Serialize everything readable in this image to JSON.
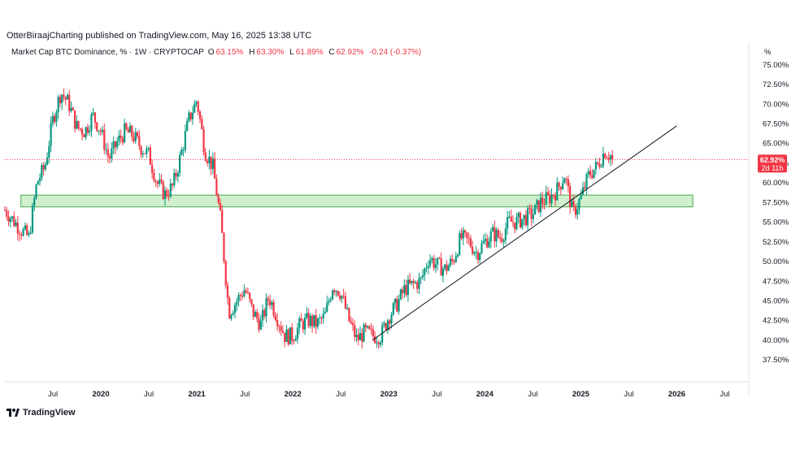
{
  "header": {
    "publisher": "OtterBiraajCharting published on TradingView.com, May 16, 2025 13:38 UTC"
  },
  "legend": {
    "symbol": "Market Cap BTC Dominance, % · 1W · CRYPTOCAP",
    "o_label": "O",
    "o_value": "63.15%",
    "h_label": "H",
    "h_value": "63.30%",
    "l_label": "L",
    "l_value": "61.89%",
    "c_label": "C",
    "c_value": "62.92%",
    "change": "-0.24 (-0.37%)"
  },
  "price_badge": {
    "value": "62.92%",
    "countdown": "2d 11h"
  },
  "footer": {
    "brand": "TradingView"
  },
  "colors": {
    "up": "#089981",
    "down": "#f23645",
    "zone_fill": "#c8ecc4",
    "zone_stroke": "#4caf50",
    "trendline": "#131722"
  },
  "chart_data": {
    "type": "candlestick",
    "y_unit": "%",
    "ylim": [
      35.5,
      77.0
    ],
    "y_ticks": [
      {
        "v": 37.5,
        "label": "37.50%"
      },
      {
        "v": 40,
        "label": "40.00%"
      },
      {
        "v": 42.5,
        "label": "42.50%"
      },
      {
        "v": 45,
        "label": "45.00%"
      },
      {
        "v": 47.5,
        "label": "47.50%"
      },
      {
        "v": 50,
        "label": "50.00%"
      },
      {
        "v": 52.5,
        "label": "52.50%"
      },
      {
        "v": 55,
        "label": "55.00%"
      },
      {
        "v": 57.5,
        "label": "57.50%"
      },
      {
        "v": 60,
        "label": "60.00%"
      },
      {
        "v": 62.5,
        "label": "62.50%"
      },
      {
        "v": 65,
        "label": "65.00%"
      },
      {
        "v": 67.5,
        "label": "67.50%"
      },
      {
        "v": 70,
        "label": "70.00%"
      },
      {
        "v": 72.5,
        "label": "72.50%"
      },
      {
        "v": 75,
        "label": "75.00%"
      }
    ],
    "x_start": "2019-01",
    "x_end": "2026-10",
    "x_ticks": [
      {
        "t": "2019-07",
        "label": "Jul",
        "bold": false
      },
      {
        "t": "2020-01",
        "label": "2020",
        "bold": true
      },
      {
        "t": "2020-07",
        "label": "Jul",
        "bold": false
      },
      {
        "t": "2021-01",
        "label": "2021",
        "bold": true
      },
      {
        "t": "2021-07",
        "label": "Jul",
        "bold": false
      },
      {
        "t": "2022-01",
        "label": "2022",
        "bold": true
      },
      {
        "t": "2022-07",
        "label": "Jul",
        "bold": false
      },
      {
        "t": "2023-01",
        "label": "2023",
        "bold": true
      },
      {
        "t": "2023-07",
        "label": "Jul",
        "bold": false
      },
      {
        "t": "2024-01",
        "label": "2024",
        "bold": true
      },
      {
        "t": "2024-07",
        "label": "Jul",
        "bold": false
      },
      {
        "t": "2025-01",
        "label": "2025",
        "bold": true
      },
      {
        "t": "2025-07",
        "label": "Jul",
        "bold": false
      },
      {
        "t": "2026-01",
        "label": "2026",
        "bold": true
      },
      {
        "t": "2026-07",
        "label": "Jul",
        "bold": false
      }
    ],
    "axis_unit_label": "%",
    "last_close": 62.92,
    "support_zone": {
      "t0": "2019-03",
      "t1": "2026-03",
      "low": 56.9,
      "high": 58.4
    },
    "trendline": {
      "t0": "2022-11",
      "v0": 40.0,
      "t1": "2026-01",
      "v1": 67.2
    },
    "price_path": [
      [
        "2019-01",
        56.5
      ],
      [
        "2019-03",
        54.0
      ],
      [
        "2019-04",
        53.0
      ],
      [
        "2019-05",
        60.0
      ],
      [
        "2019-06",
        62.0
      ],
      [
        "2019-07",
        68.0
      ],
      [
        "2019-08",
        71.5
      ],
      [
        "2019-09",
        70.0
      ],
      [
        "2019-10",
        67.0
      ],
      [
        "2019-11",
        66.5
      ],
      [
        "2019-12",
        68.5
      ],
      [
        "2020-01",
        66.5
      ],
      [
        "2020-02",
        63.0
      ],
      [
        "2020-03",
        65.0
      ],
      [
        "2020-04",
        66.5
      ],
      [
        "2020-05",
        66.0
      ],
      [
        "2020-06",
        64.5
      ],
      [
        "2020-07",
        63.5
      ],
      [
        "2020-08",
        60.0
      ],
      [
        "2020-09",
        58.5
      ],
      [
        "2020-10",
        59.5
      ],
      [
        "2020-11",
        63.5
      ],
      [
        "2020-12",
        68.0
      ],
      [
        "2021-01",
        70.5
      ],
      [
        "2021-02",
        64.0
      ],
      [
        "2021-03",
        62.0
      ],
      [
        "2021-04",
        55.0
      ],
      [
        "2021-05",
        43.5
      ],
      [
        "2021-06",
        45.0
      ],
      [
        "2021-07",
        46.5
      ],
      [
        "2021-08",
        43.5
      ],
      [
        "2021-09",
        42.0
      ],
      [
        "2021-10",
        45.5
      ],
      [
        "2021-11",
        43.0
      ],
      [
        "2021-12",
        40.5
      ],
      [
        "2022-01",
        40.5
      ],
      [
        "2022-02",
        42.0
      ],
      [
        "2022-03",
        42.5
      ],
      [
        "2022-04",
        42.0
      ],
      [
        "2022-05",
        43.0
      ],
      [
        "2022-06",
        47.0
      ],
      [
        "2022-07",
        46.0
      ],
      [
        "2022-08",
        42.5
      ],
      [
        "2022-09",
        40.0
      ],
      [
        "2022-10",
        41.0
      ],
      [
        "2022-11",
        40.5
      ],
      [
        "2022-12",
        40.5
      ],
      [
        "2023-01",
        43.0
      ],
      [
        "2023-02",
        44.5
      ],
      [
        "2023-03",
        46.5
      ],
      [
        "2023-04",
        47.0
      ],
      [
        "2023-05",
        47.5
      ],
      [
        "2023-06",
        50.5
      ],
      [
        "2023-07",
        49.5
      ],
      [
        "2023-08",
        49.0
      ],
      [
        "2023-09",
        50.0
      ],
      [
        "2023-10",
        53.0
      ],
      [
        "2023-11",
        52.5
      ],
      [
        "2023-12",
        51.0
      ],
      [
        "2024-01",
        52.5
      ],
      [
        "2024-02",
        53.5
      ],
      [
        "2024-03",
        53.0
      ],
      [
        "2024-04",
        55.0
      ],
      [
        "2024-05",
        55.0
      ],
      [
        "2024-06",
        55.5
      ],
      [
        "2024-07",
        56.0
      ],
      [
        "2024-08",
        57.5
      ],
      [
        "2024-09",
        58.0
      ],
      [
        "2024-10",
        59.0
      ],
      [
        "2024-11",
        61.0
      ],
      [
        "2024-12",
        56.0
      ],
      [
        "2025-01",
        58.0
      ],
      [
        "2025-02",
        61.0
      ],
      [
        "2025-03",
        62.0
      ],
      [
        "2025-04",
        64.0
      ],
      [
        "2025-05",
        63.2
      ]
    ]
  }
}
